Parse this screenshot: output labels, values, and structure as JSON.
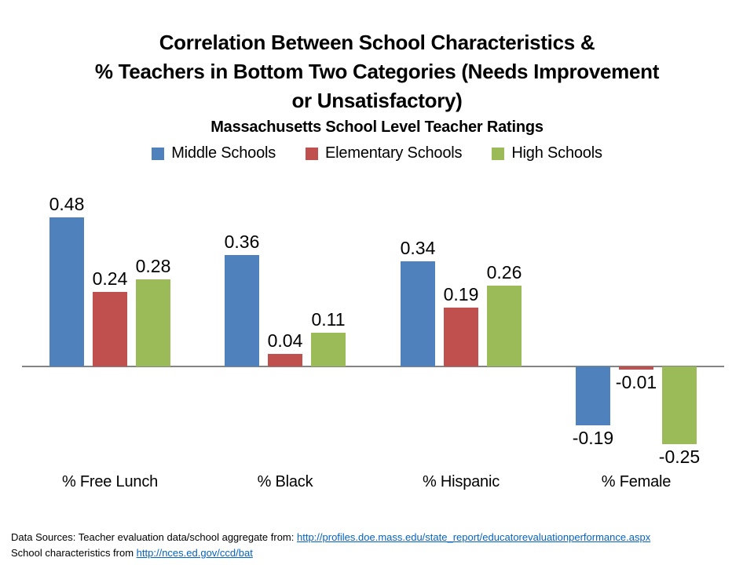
{
  "header": {
    "title": "Correlation Between School Characteristics &\n% Teachers in Bottom Two Categories (Needs Improvement\nor Unsatisfactory)",
    "subtitle": "Massachusetts School Level Teacher Ratings"
  },
  "chart_data": {
    "type": "bar",
    "title": "Correlation Between School Characteristics & % Teachers in Bottom Two Categories (Needs Improvement or Unsatisfactory)",
    "subtitle": "Massachusetts School Level Teacher Ratings",
    "categories": [
      "% Free Lunch",
      "% Black",
      "% Hispanic",
      "% Female"
    ],
    "series": [
      {
        "name": "Middle Schools",
        "color": "#4F81BD",
        "values": [
          0.48,
          0.36,
          0.34,
          -0.19
        ]
      },
      {
        "name": "Elementary Schools",
        "color": "#C0504D",
        "values": [
          0.24,
          0.04,
          0.19,
          -0.01
        ]
      },
      {
        "name": "High Schools",
        "color": "#9BBB59",
        "values": [
          0.28,
          0.11,
          0.26,
          -0.25
        ]
      }
    ],
    "value_labels": true,
    "grid": false,
    "legend_position": "top",
    "axis_line_color": "#848484",
    "ylim": [
      -0.35,
      0.6
    ]
  },
  "footer": {
    "line1_prefix": "Data Sources: Teacher evaluation data/school aggregate from: ",
    "line1_link": "http://profiles.doe.mass.edu/state_report/educatorevaluationperformance.aspx",
    "line2_prefix": "School characteristics from ",
    "line2_link": "http://nces.ed.gov/ccd/bat",
    "link_color": "#0563C1"
  }
}
